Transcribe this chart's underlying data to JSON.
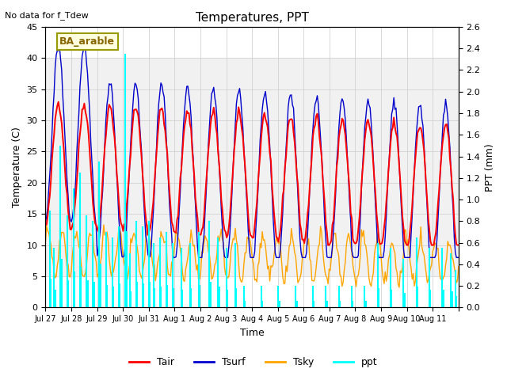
{
  "title": "Temperatures, PPT",
  "xlabel": "Time",
  "ylabel_left": "Temperature (C)",
  "ylabel_right": "PPT (mm)",
  "top_label": "No data for f_Tdew",
  "box_label": "BA_arable",
  "ylim_left": [
    0,
    45
  ],
  "ylim_right": [
    0.0,
    2.6
  ],
  "yticks_left": [
    0,
    5,
    10,
    15,
    20,
    25,
    30,
    35,
    40,
    45
  ],
  "yticks_right": [
    0.0,
    0.2,
    0.4,
    0.6,
    0.8,
    1.0,
    1.2,
    1.4,
    1.6,
    1.8,
    2.0,
    2.2,
    2.4,
    2.6
  ],
  "xtick_positions": [
    0,
    1,
    2,
    3,
    4,
    5,
    6,
    7,
    8,
    9,
    10,
    11,
    12,
    13,
    14,
    15,
    16
  ],
  "xtick_labels": [
    "Jul 27",
    "Jul 28",
    "Jul 29",
    "Jul 30",
    "Jul 31",
    "Aug 1",
    "Aug 2",
    "Aug 3",
    "Aug 4",
    "Aug 5",
    "Aug 6",
    "Aug 7",
    "Aug 8",
    "Aug 9",
    "Aug 10",
    "Aug 11",
    ""
  ],
  "colors": {
    "Tair": "#ff0000",
    "Tsurf": "#0000cc",
    "Tsky": "#ffa500",
    "ppt": "#00ffff"
  },
  "background_color": "#ffffff",
  "grid_color": "#cccccc",
  "band_color": "#e8e8e8",
  "box_face": "lightyellow",
  "box_edge": "#999900",
  "box_text": "#886600",
  "n_days": 16,
  "n_hours": 384
}
